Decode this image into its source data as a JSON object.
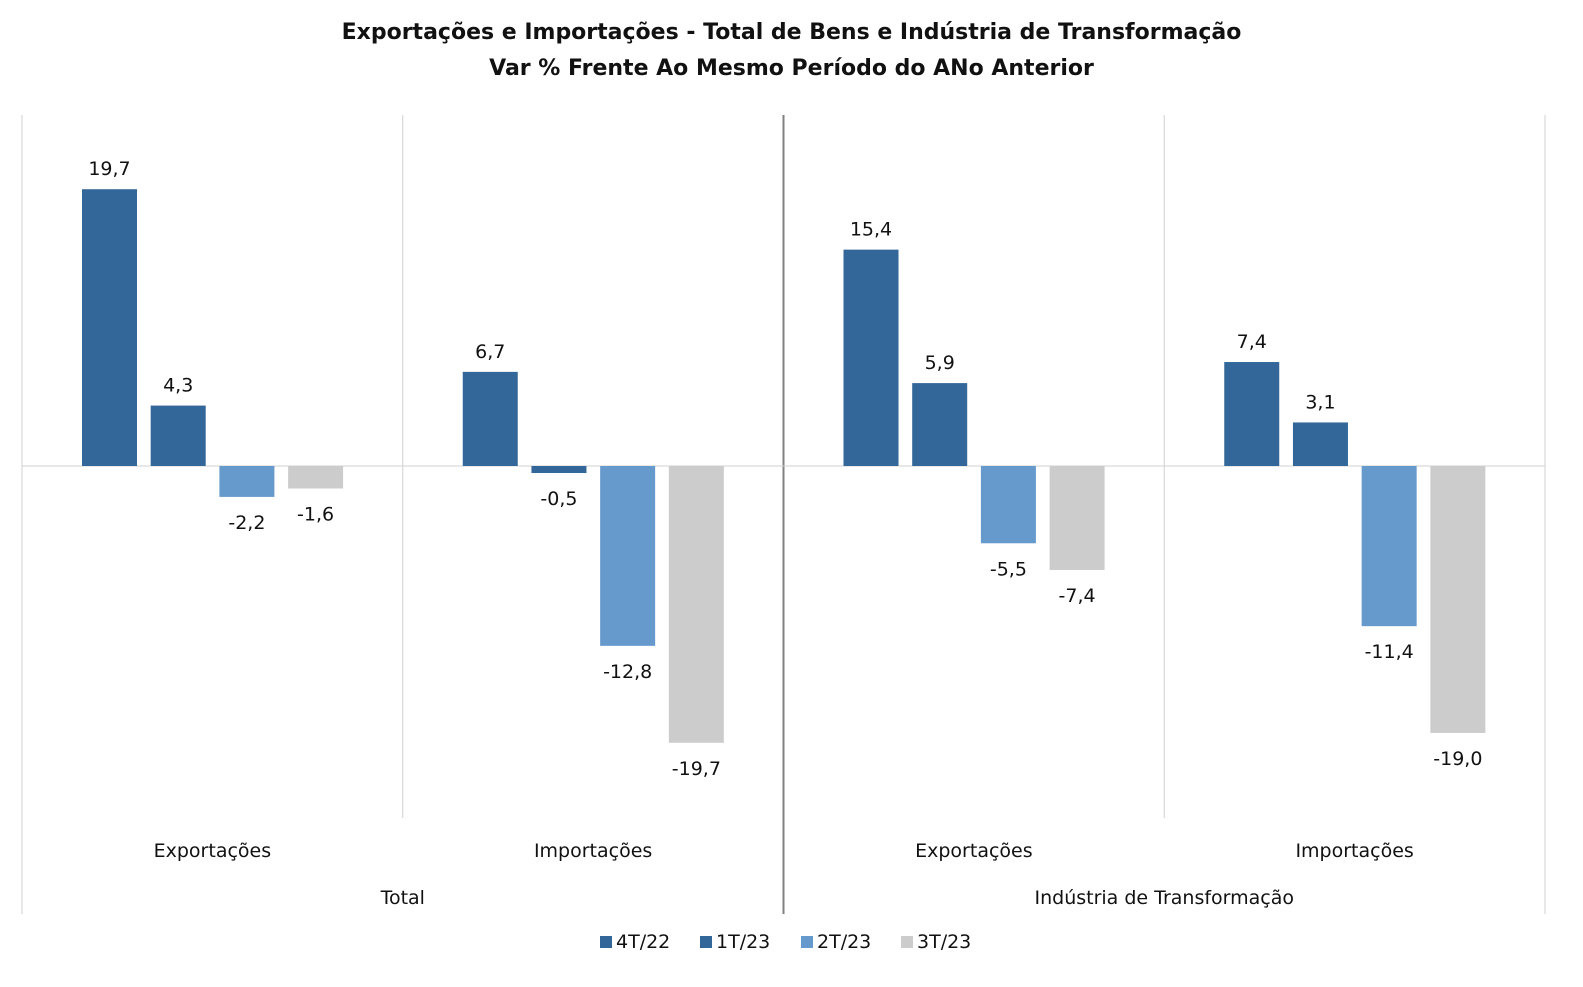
{
  "chart_data": {
    "type": "bar",
    "title": "Exportações e Importações - Total de Bens e Indústria de Transformação",
    "subtitle": "Var % Frente Ao Mesmo Período do ANo Anterior",
    "groups": [
      {
        "label": "Total",
        "categories": [
          "Exportações",
          "Importações"
        ]
      },
      {
        "label": "Indústria de Transformação",
        "categories": [
          "Exportações",
          "Importações"
        ]
      }
    ],
    "categories": [
      "Exportações",
      "Importações",
      "Exportações",
      "Importações"
    ],
    "series": [
      {
        "name": "4T/22",
        "color": "#336699",
        "values": [
          19.7,
          6.7,
          15.4,
          7.4
        ],
        "labels": [
          "19,7",
          "6,7",
          "15,4",
          "7,4"
        ]
      },
      {
        "name": "1T/23",
        "color": "#336699",
        "values": [
          4.3,
          -0.5,
          5.9,
          3.1
        ],
        "labels": [
          "4,3",
          "-0,5",
          "5,9",
          "3,1"
        ]
      },
      {
        "name": "2T/23",
        "color": "#6699CC",
        "values": [
          -2.2,
          -12.8,
          -5.5,
          -11.4
        ],
        "labels": [
          "-2,2",
          "-12,8",
          "-5,5",
          "-11,4"
        ]
      },
      {
        "name": "3T/23",
        "color": "#CCCCCC",
        "values": [
          -1.6,
          -19.7,
          -7.4,
          -19.0
        ],
        "labels": [
          "-1,6",
          "-19,7",
          "-7,4",
          "-19,0"
        ]
      }
    ],
    "ylim": [
      -25,
      25
    ],
    "grid": false,
    "legend": "bottom"
  }
}
